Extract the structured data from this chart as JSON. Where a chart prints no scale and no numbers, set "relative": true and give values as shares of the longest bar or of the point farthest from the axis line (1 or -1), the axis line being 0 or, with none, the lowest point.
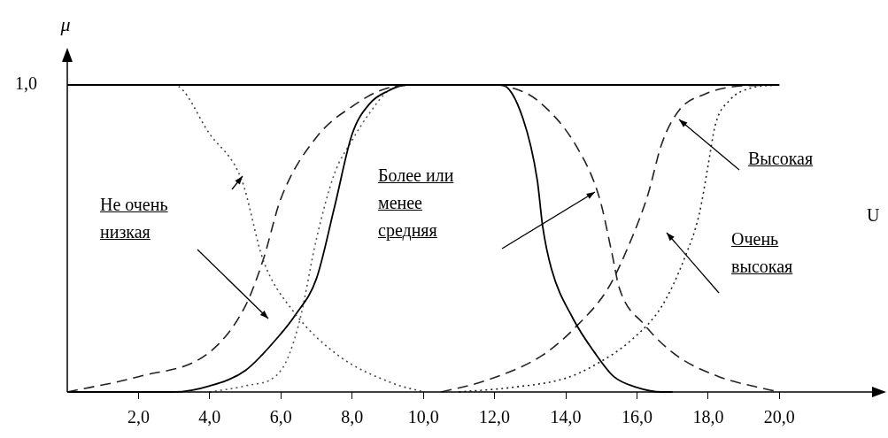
{
  "chart_data": {
    "type": "line",
    "relative": true,
    "xlabel": "U",
    "ylabel": "μ",
    "xlim": [
      0,
      23
    ],
    "xticks": [
      {
        "value": 2,
        "label": "2,0"
      },
      {
        "value": 4,
        "label": "4,0"
      },
      {
        "value": 6,
        "label": "6,0"
      },
      {
        "value": 8,
        "label": "8,0"
      },
      {
        "value": 10,
        "label": "10,0"
      },
      {
        "value": 12,
        "label": "12,0"
      },
      {
        "value": 14,
        "label": "14,0"
      },
      {
        "value": 16,
        "label": "16,0"
      },
      {
        "value": 18,
        "label": "18,0"
      },
      {
        "value": 20,
        "label": "20,0"
      }
    ],
    "grid": false,
    "legend": false,
    "marker": "none",
    "series": [
      {
        "color": "#000000",
        "line_style": "solid",
        "x": [
          0,
          20
        ],
        "values": [
          1,
          1
        ]
      },
      {
        "color": "#444444",
        "line_style": "dotted",
        "x": [
          0,
          3,
          4,
          4.9,
          5.5,
          6.3,
          7.6,
          9.1,
          10
        ],
        "values": [
          1,
          1,
          0.84,
          0.69,
          0.43,
          0.27,
          0.12,
          0.03,
          0
        ]
      },
      {
        "color": "#222222",
        "line_style": "dashed",
        "x": [
          0,
          2,
          4,
          5,
          5.5,
          6,
          7,
          8,
          9,
          10,
          12,
          12.5,
          13.2,
          14.3,
          14.95,
          15.3,
          15.5,
          16.2,
          17.1,
          18.3,
          19.6,
          20
        ],
        "values": [
          0,
          0.05,
          0.13,
          0.28,
          0.43,
          0.63,
          0.83,
          0.93,
          0.99,
          1,
          1,
          0.99,
          0.95,
          0.8,
          0.63,
          0.45,
          0.34,
          0.22,
          0.12,
          0.05,
          0.01,
          0
        ]
      },
      {
        "color": "#000000",
        "line_style": "solid",
        "x": [
          0,
          3,
          4,
          5,
          6,
          6.4,
          7,
          7.5,
          8,
          8.5,
          9,
          9.5,
          12,
          12.2,
          12.8,
          13.2,
          13.35,
          13.6,
          14.2,
          14.8,
          15.35,
          16,
          16.7,
          17
        ],
        "values": [
          0,
          0,
          0.02,
          0.07,
          0.19,
          0.25,
          0.37,
          0.6,
          0.84,
          0.94,
          0.98,
          1,
          1,
          1,
          0.89,
          0.69,
          0.54,
          0.4,
          0.24,
          0.13,
          0.05,
          0.015,
          0,
          0
        ]
      },
      {
        "color": "#555555",
        "line_style": "dotted",
        "x": [
          4,
          5,
          6,
          6.5,
          7,
          7.5,
          8,
          8.5,
          9,
          9.5,
          12
        ],
        "values": [
          0,
          0.02,
          0.07,
          0.22,
          0.5,
          0.71,
          0.82,
          0.91,
          0.98,
          1,
          1
        ]
      },
      {
        "color": "#222222",
        "line_style": "dashed",
        "x": [
          10.5,
          11.7,
          13.35,
          14.35,
          15.2,
          15.85,
          16.3,
          16.7,
          17.2,
          17.9,
          18.75,
          20
        ],
        "values": [
          0,
          0.035,
          0.12,
          0.22,
          0.34,
          0.5,
          0.64,
          0.81,
          0.92,
          0.97,
          0.995,
          1
        ]
      },
      {
        "color": "#222222",
        "line_style": "dotted",
        "x": [
          11,
          12.5,
          14,
          14.85,
          15.85,
          16.7,
          17.35,
          17.75,
          18,
          18.2,
          18.6,
          19.2,
          20
        ],
        "values": [
          0,
          0.015,
          0.045,
          0.09,
          0.17,
          0.28,
          0.44,
          0.58,
          0.74,
          0.87,
          0.95,
          0.99,
          1
        ]
      }
    ],
    "annotations": [
      {
        "text": "1,0",
        "x": 0,
        "y": 1
      },
      "Не очень низкая",
      "Более или менее средняя",
      "Высокая",
      "Очень высокая"
    ]
  }
}
